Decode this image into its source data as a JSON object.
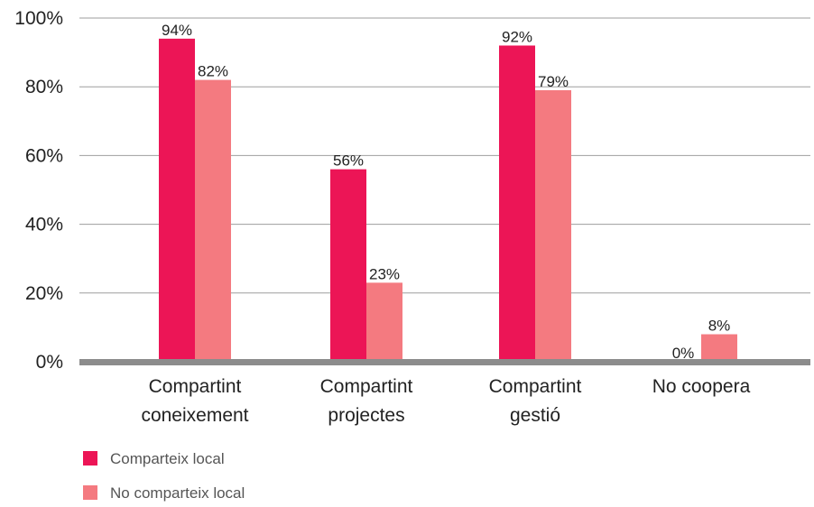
{
  "chart_data": {
    "type": "bar",
    "title": "",
    "xlabel": "",
    "ylabel": "",
    "ylim": [
      0,
      100
    ],
    "y_ticks": [
      0,
      20,
      40,
      60,
      80,
      100
    ],
    "y_tick_labels": [
      "0%",
      "20%",
      "40%",
      "60%",
      "80%",
      "100%"
    ],
    "grid": true,
    "legend_position": "bottom-left",
    "categories": [
      [
        "Compartint",
        "coneixement"
      ],
      [
        "Compartint",
        "projectes"
      ],
      [
        "Compartint",
        "gestió"
      ],
      [
        "No coopera"
      ]
    ],
    "series": [
      {
        "name": "Comparteix local",
        "color": "#ec1556",
        "values": [
          94,
          56,
          92,
          0
        ],
        "labels": [
          "94%",
          "56%",
          "92%",
          "0%"
        ]
      },
      {
        "name": "No comparteix local",
        "color": "#f47a80",
        "values": [
          82,
          23,
          79,
          8
        ],
        "labels": [
          "82%",
          "23%",
          "79%",
          "8%"
        ]
      }
    ],
    "axis_color": "#8c8c8c",
    "grid_color": "#9e9e9e"
  }
}
